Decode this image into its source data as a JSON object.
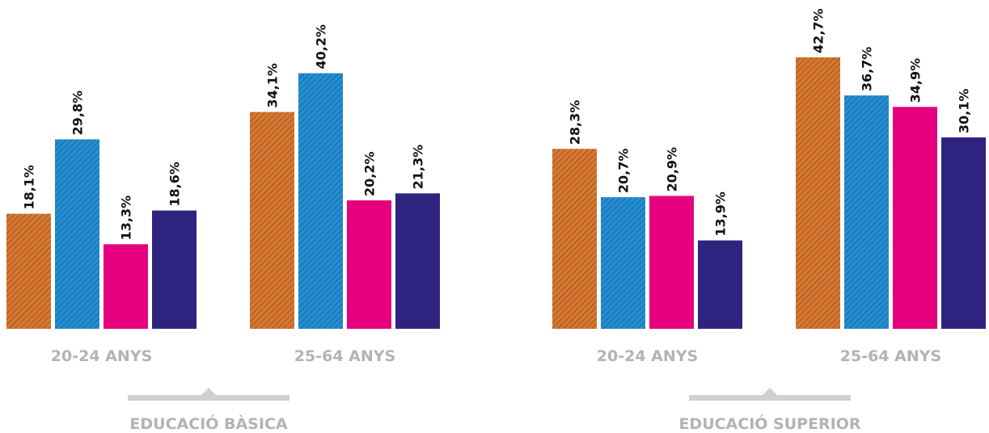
{
  "colors": {
    "series_1": "#d9772e",
    "series_2": "#1f8fd6",
    "series_3": "#e6007e",
    "series_4": "#2e2480",
    "labels": "#b3b3b3",
    "bracket": "#d0d0d0"
  },
  "chart_data": [
    {
      "type": "bar",
      "title": "EDUCACIÓ BÀSICA",
      "categories": [
        "20-24 ANYS",
        "25-64 ANYS"
      ],
      "series": [
        {
          "values": [
            18.1,
            34.1
          ],
          "labels": [
            "18,1%",
            "34,1%"
          ],
          "pattern": "hatched"
        },
        {
          "values": [
            29.8,
            40.2
          ],
          "labels": [
            "29,8%",
            "40,2%"
          ],
          "pattern": "hatched"
        },
        {
          "values": [
            13.3,
            20.2
          ],
          "labels": [
            "13,3%",
            "20,2%"
          ],
          "pattern": "solid"
        },
        {
          "values": [
            18.6,
            21.3
          ],
          "labels": [
            "18,6%",
            "21,3%"
          ],
          "pattern": "solid"
        }
      ],
      "ylim": [
        0,
        45
      ]
    },
    {
      "type": "bar",
      "title": "EDUCACIÓ SUPERIOR",
      "categories": [
        "20-24 ANYS",
        "25-64 ANYS"
      ],
      "series": [
        {
          "values": [
            28.3,
            42.7
          ],
          "labels": [
            "28,3%",
            "42,7%"
          ],
          "pattern": "hatched"
        },
        {
          "values": [
            20.7,
            36.7
          ],
          "labels": [
            "20,7%",
            "36,7%"
          ],
          "pattern": "hatched"
        },
        {
          "values": [
            20.9,
            34.9
          ],
          "labels": [
            "20,9%",
            "34,9%"
          ],
          "pattern": "solid"
        },
        {
          "values": [
            13.9,
            30.1
          ],
          "labels": [
            "13,9%",
            "30,1%"
          ],
          "pattern": "solid"
        }
      ],
      "ylim": [
        0,
        45
      ]
    }
  ]
}
